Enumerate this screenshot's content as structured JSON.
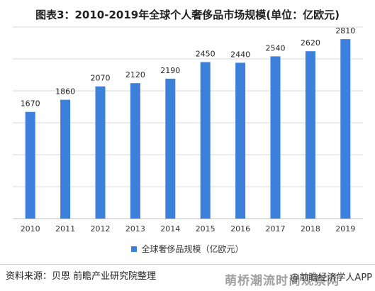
{
  "chart_data": {
    "type": "bar",
    "title": "图表3：2010-2019年全球个人奢侈品市场规模(单位：亿欧元)",
    "categories": [
      "2010",
      "2011",
      "2012",
      "2013",
      "2014",
      "2015",
      "2016",
      "2017",
      "2018",
      "2019"
    ],
    "series": [
      {
        "name": "全球奢侈品规模（亿欧元）",
        "values": [
          1670,
          1860,
          2070,
          2120,
          2190,
          2450,
          2440,
          2540,
          2620,
          2810
        ],
        "color": "#3d80dc"
      }
    ],
    "ylim": [
      0,
      3000
    ],
    "grid": true,
    "legend_position": "bottom-center",
    "source": "资料来源：贝恩 前瞻产业研究院整理"
  },
  "watermark": "萌桥潮流时尚观察网",
  "app_credit": "@前瞻经济学人APP",
  "colors": {
    "bar": "#3d80dc",
    "grid": "#d9d9d9",
    "axis": "#bfbfbf"
  }
}
